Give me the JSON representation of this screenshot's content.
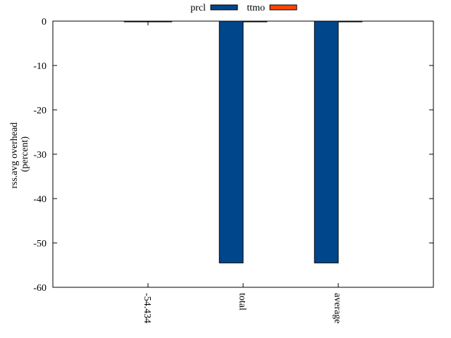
{
  "chart_data": {
    "type": "bar",
    "categories": [
      "-54.434",
      "total",
      "average"
    ],
    "series": [
      {
        "name": "prcl",
        "values": [
          0,
          -54.5,
          -54.5
        ],
        "color": "#00468b"
      },
      {
        "name": "ttmo",
        "values": [
          0,
          0,
          0
        ],
        "color": "#ff4500"
      }
    ],
    "ylabel_line1": "rss.avg overhead",
    "ylabel_line2": "(percent)",
    "ylim": [
      -60,
      0
    ],
    "yticks": [
      0,
      -10,
      -20,
      -30,
      -40,
      -50,
      -60
    ],
    "ytick_labels": [
      "0",
      "-10",
      "-20",
      "-30",
      "-40",
      "-50",
      "-60"
    ],
    "legend_position": "top-center",
    "grid": false
  }
}
